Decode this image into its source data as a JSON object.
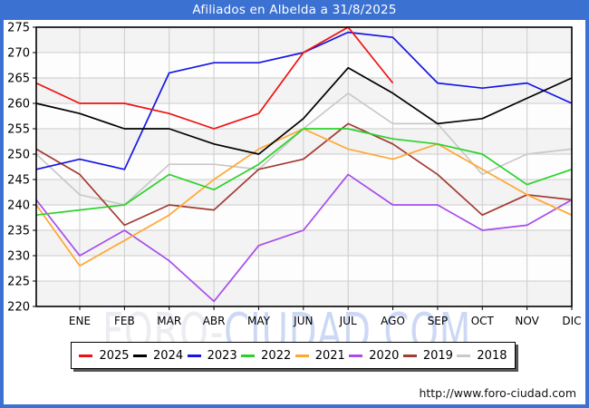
{
  "header": {
    "title": "Afiliados en Albelda a 31/8/2025"
  },
  "footer": {
    "url": "http://www.foro-ciudad.com"
  },
  "watermark": {
    "part1": "FORO-",
    "part2": "CIUDAD.COM",
    "color1": "#ececf2",
    "color2": "#cdd9f4"
  },
  "colors": {
    "frame_blue": "#3b71d1",
    "grid": "#cccccc",
    "band": "#f3f3f3",
    "plot_bg": "#fdfdfd",
    "axis": "#000000"
  },
  "chart_data": {
    "type": "line",
    "title": "Afiliados en Albelda a 31/8/2025",
    "x_categories": [
      "ENE",
      "FEB",
      "MAR",
      "ABR",
      "MAY",
      "JUN",
      "JUL",
      "AGO",
      "SEP",
      "OCT",
      "NOV",
      "DIC"
    ],
    "ylim": [
      220,
      275
    ],
    "yticks": [
      220,
      225,
      230,
      235,
      240,
      245,
      250,
      255,
      260,
      265,
      270,
      275
    ],
    "grid": true,
    "legend_position": "bottom",
    "series": [
      {
        "name": "2025",
        "color": "#ee1111",
        "edge_value": 264,
        "values": [
          260,
          260,
          258,
          255,
          258,
          270,
          275,
          264,
          null,
          null,
          null,
          null
        ]
      },
      {
        "name": "2024",
        "color": "#000000",
        "edge_value": 260,
        "values": [
          258,
          255,
          255,
          252,
          250,
          257,
          267,
          262,
          256,
          257,
          261,
          265
        ]
      },
      {
        "name": "2023",
        "color": "#1515e6",
        "edge_value": 247,
        "values": [
          249,
          247,
          266,
          268,
          268,
          270,
          274,
          273,
          264,
          263,
          264,
          260
        ]
      },
      {
        "name": "2022",
        "color": "#2bd22b",
        "edge_value": 238,
        "values": [
          239,
          240,
          246,
          243,
          248,
          255,
          255,
          253,
          252,
          250,
          244,
          247
        ]
      },
      {
        "name": "2021",
        "color": "#ffa733",
        "edge_value": 240,
        "values": [
          228,
          233,
          238,
          245,
          251,
          255,
          251,
          249,
          252,
          247,
          242,
          238
        ]
      },
      {
        "name": "2020",
        "color": "#a64ded",
        "edge_value": 241,
        "values": [
          230,
          235,
          229,
          221,
          232,
          235,
          246,
          240,
          240,
          235,
          236,
          241
        ]
      },
      {
        "name": "2019",
        "color": "#a33b32",
        "edge_value": 251,
        "values": [
          246,
          236,
          240,
          239,
          247,
          249,
          256,
          252,
          246,
          238,
          242,
          241
        ]
      },
      {
        "name": "2018",
        "color": "#c9c9c9",
        "edge_value": 250,
        "values": [
          242,
          240,
          248,
          248,
          247,
          255,
          262,
          256,
          256,
          246,
          250,
          251
        ]
      }
    ]
  }
}
